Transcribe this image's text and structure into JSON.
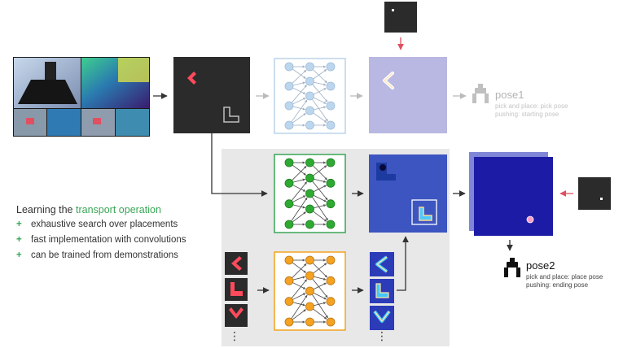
{
  "pose1": {
    "title": "pose1",
    "line1": "pick and place: pick pose",
    "line2": "pushing: starting pose"
  },
  "pose2": {
    "title": "pose2",
    "line1": "pick and place: place pose",
    "line2": "pushing: ending pose"
  },
  "learning": {
    "prefix": "Learning the ",
    "highlight": "transport operation",
    "bullets": [
      "exhaustive search over placements",
      "fast implementation with convolutions",
      "can be trained from demonstrations"
    ],
    "bullet_marker": "+"
  },
  "ellipsis": "⋮",
  "colors": {
    "green_accent": "#3aa655",
    "red_arrow": "#e05060",
    "attention_node": "#bcd6ee",
    "transport_node": "#2eaa32",
    "kernel_node": "#f4a21f",
    "heatmap_blue": "#1c1ba6",
    "gray_panel": "#e8e8e8"
  },
  "icons": [
    "robot-camera-views",
    "pick-cross-shape",
    "place-l-shape",
    "gripper-icon",
    "place-marker"
  ]
}
